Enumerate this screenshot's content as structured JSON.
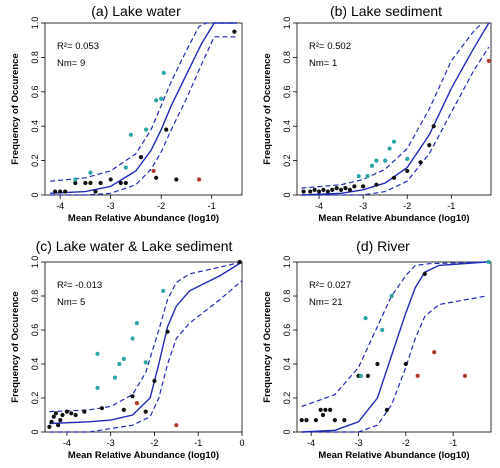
{
  "chart_data": [
    {
      "type": "scatter",
      "title": "(a) Lake water",
      "xlabel": "Mean Relative Abundance (log10)",
      "ylabel": "Frequency of Occurence",
      "r2_text": "R²= 0.053",
      "nm_text": "Nm= 9",
      "xlim": [
        -4.3,
        -0.4
      ],
      "ylim": [
        0,
        1.0
      ],
      "xticks": [
        -4,
        -3,
        -2,
        -1
      ],
      "yticks": [
        0,
        0.2,
        0.4,
        0.6,
        0.8,
        1.0
      ],
      "tick_labels_x": [
        "-4",
        "-3",
        "-2",
        "-1"
      ],
      "tick_labels_y": [
        "0",
        "0.2",
        "0.4",
        "0.6",
        "0.8",
        "1.0"
      ],
      "fit": [
        [
          -4.2,
          0.01
        ],
        [
          -3.5,
          0.02
        ],
        [
          -3.0,
          0.05
        ],
        [
          -2.5,
          0.14
        ],
        [
          -2.2,
          0.26
        ],
        [
          -2.0,
          0.38
        ],
        [
          -1.8,
          0.52
        ],
        [
          -1.5,
          0.7
        ],
        [
          -1.2,
          0.88
        ],
        [
          -0.95,
          1.0
        ],
        [
          -0.5,
          1.0
        ]
      ],
      "upper": [
        [
          -4.2,
          0.08
        ],
        [
          -3.5,
          0.1
        ],
        [
          -3.0,
          0.14
        ],
        [
          -2.5,
          0.24
        ],
        [
          -2.2,
          0.38
        ],
        [
          -2.0,
          0.52
        ],
        [
          -1.8,
          0.66
        ],
        [
          -1.5,
          0.84
        ],
        [
          -1.25,
          0.98
        ],
        [
          -1.1,
          1.0
        ],
        [
          -0.5,
          1.0
        ]
      ],
      "lower": [
        [
          -4.2,
          0.0
        ],
        [
          -3.5,
          0.0
        ],
        [
          -3.0,
          0.01
        ],
        [
          -2.5,
          0.06
        ],
        [
          -2.2,
          0.15
        ],
        [
          -2.0,
          0.25
        ],
        [
          -1.8,
          0.38
        ],
        [
          -1.5,
          0.56
        ],
        [
          -1.2,
          0.76
        ],
        [
          -0.95,
          0.92
        ],
        [
          -0.5,
          0.92
        ]
      ],
      "black": [
        [
          -4.1,
          0.02
        ],
        [
          -4.0,
          0.02
        ],
        [
          -3.9,
          0.02
        ],
        [
          -3.7,
          0.07
        ],
        [
          -3.5,
          0.07
        ],
        [
          -3.4,
          0.07
        ],
        [
          -3.3,
          0.02
        ],
        [
          -3.2,
          0.07
        ],
        [
          -3.0,
          0.09
        ],
        [
          -2.8,
          0.07
        ],
        [
          -2.7,
          0.07
        ],
        [
          -2.4,
          0.22
        ],
        [
          -2.1,
          0.1
        ],
        [
          -1.7,
          0.09
        ],
        [
          -1.9,
          0.38
        ],
        [
          -0.55,
          0.95
        ]
      ],
      "cyan": [
        [
          -3.7,
          0.09
        ],
        [
          -3.4,
          0.13
        ],
        [
          -2.7,
          0.16
        ],
        [
          -2.3,
          0.38
        ],
        [
          -2.1,
          0.55
        ],
        [
          -1.95,
          0.71
        ],
        [
          -2.0,
          0.56
        ],
        [
          -2.6,
          0.35
        ]
      ],
      "red": [
        [
          -2.15,
          0.14
        ],
        [
          -1.25,
          0.09
        ]
      ]
    },
    {
      "type": "scatter",
      "title": "(b) Lake sediment",
      "xlabel": "Mean Relative Abundance (log10)",
      "ylabel": "Frequency of Occurence",
      "r2_text": "R²= 0.502",
      "nm_text": "Nm= 1",
      "xlim": [
        -4.5,
        -0.1
      ],
      "ylim": [
        0,
        1.0
      ],
      "xticks": [
        -4,
        -3,
        -2,
        -1
      ],
      "yticks": [
        0,
        0.2,
        0.4,
        0.6,
        0.8,
        1.0
      ],
      "tick_labels_x": [
        "-4",
        "-3",
        "-2",
        "-1"
      ],
      "tick_labels_y": [
        "0",
        "0.2",
        "0.4",
        "0.6",
        "0.8",
        "1.0"
      ],
      "fit": [
        [
          -4.4,
          0.0
        ],
        [
          -3.5,
          0.01
        ],
        [
          -3.0,
          0.03
        ],
        [
          -2.5,
          0.07
        ],
        [
          -2.0,
          0.16
        ],
        [
          -1.5,
          0.35
        ],
        [
          -1.0,
          0.62
        ],
        [
          -0.5,
          0.85
        ],
        [
          -0.15,
          1.0
        ]
      ],
      "upper": [
        [
          -4.4,
          0.04
        ],
        [
          -3.5,
          0.06
        ],
        [
          -3.0,
          0.09
        ],
        [
          -2.5,
          0.15
        ],
        [
          -2.0,
          0.27
        ],
        [
          -1.5,
          0.5
        ],
        [
          -1.0,
          0.78
        ],
        [
          -0.5,
          0.95
        ],
        [
          -0.3,
          1.0
        ]
      ],
      "lower": [
        [
          -4.4,
          0.0
        ],
        [
          -3.5,
          0.0
        ],
        [
          -3.0,
          0.0
        ],
        [
          -2.5,
          0.02
        ],
        [
          -2.0,
          0.08
        ],
        [
          -1.5,
          0.24
        ],
        [
          -1.0,
          0.48
        ],
        [
          -0.5,
          0.72
        ],
        [
          -0.15,
          0.86
        ]
      ],
      "black": [
        [
          -4.35,
          0.02
        ],
        [
          -4.2,
          0.02
        ],
        [
          -4.1,
          0.03
        ],
        [
          -4.0,
          0.02
        ],
        [
          -3.9,
          0.03
        ],
        [
          -3.8,
          0.02
        ],
        [
          -3.7,
          0.03
        ],
        [
          -3.6,
          0.04
        ],
        [
          -3.5,
          0.03
        ],
        [
          -3.4,
          0.04
        ],
        [
          -3.3,
          0.03
        ],
        [
          -3.2,
          0.05
        ],
        [
          -3.0,
          0.05
        ],
        [
          -2.7,
          0.06
        ],
        [
          -2.3,
          0.1
        ],
        [
          -2.0,
          0.14
        ],
        [
          -1.7,
          0.19
        ],
        [
          -1.5,
          0.29
        ],
        [
          -1.4,
          0.4
        ]
      ],
      "cyan": [
        [
          -3.1,
          0.11
        ],
        [
          -2.9,
          0.11
        ],
        [
          -2.8,
          0.17
        ],
        [
          -2.5,
          0.2
        ],
        [
          -2.4,
          0.27
        ],
        [
          -2.3,
          0.31
        ],
        [
          -2.7,
          0.2
        ],
        [
          -2.0,
          0.21
        ]
      ],
      "red": [
        [
          -0.15,
          0.78
        ]
      ]
    },
    {
      "type": "scatter",
      "title": "(c) Lake water & Lake sediment",
      "xlabel": "Mean Relative Abundance (log10)",
      "ylabel": "Frequency of Occurence",
      "r2_text": "R²= -0.013",
      "nm_text": "Nm= 5",
      "xlim": [
        -4.5,
        0.0
      ],
      "ylim": [
        0,
        1.0
      ],
      "xticks": [
        -4,
        -3,
        -2,
        -1,
        0
      ],
      "yticks": [
        0,
        0.2,
        0.4,
        0.6,
        0.8,
        1.0
      ],
      "tick_labels_x": [
        "-4",
        "-3",
        "-2",
        "-1",
        "0"
      ],
      "tick_labels_y": [
        "0",
        "0.2",
        "0.4",
        "0.6",
        "0.8",
        "1.0"
      ],
      "fit": [
        [
          -4.4,
          0.05
        ],
        [
          -3.5,
          0.06
        ],
        [
          -3.0,
          0.07
        ],
        [
          -2.5,
          0.1
        ],
        [
          -2.1,
          0.2
        ],
        [
          -1.9,
          0.4
        ],
        [
          -1.7,
          0.62
        ],
        [
          -1.5,
          0.74
        ],
        [
          -1.2,
          0.83
        ],
        [
          -0.5,
          0.92
        ],
        [
          0.0,
          1.0
        ]
      ],
      "upper": [
        [
          -4.4,
          0.12
        ],
        [
          -3.5,
          0.13
        ],
        [
          -3.0,
          0.15
        ],
        [
          -2.5,
          0.22
        ],
        [
          -2.2,
          0.35
        ],
        [
          -1.9,
          0.6
        ],
        [
          -1.7,
          0.78
        ],
        [
          -1.5,
          0.88
        ],
        [
          -1.2,
          0.93
        ],
        [
          -0.5,
          0.97
        ],
        [
          0.0,
          1.0
        ]
      ],
      "lower": [
        [
          -4.4,
          0.0
        ],
        [
          -3.5,
          0.0
        ],
        [
          -3.0,
          0.02
        ],
        [
          -2.5,
          0.04
        ],
        [
          -2.1,
          0.09
        ],
        [
          -1.9,
          0.2
        ],
        [
          -1.7,
          0.4
        ],
        [
          -1.5,
          0.55
        ],
        [
          -1.2,
          0.64
        ],
        [
          -0.5,
          0.78
        ],
        [
          0.0,
          0.89
        ]
      ],
      "black": [
        [
          -4.4,
          0.03
        ],
        [
          -4.35,
          0.06
        ],
        [
          -4.3,
          0.09
        ],
        [
          -4.25,
          0.11
        ],
        [
          -4.2,
          0.04
        ],
        [
          -4.15,
          0.07
        ],
        [
          -4.1,
          0.1
        ],
        [
          -4.0,
          0.12
        ],
        [
          -3.9,
          0.11
        ],
        [
          -3.8,
          0.1
        ],
        [
          -3.6,
          0.12
        ],
        [
          -3.2,
          0.14
        ],
        [
          -2.7,
          0.13
        ],
        [
          -2.5,
          0.21
        ],
        [
          -2.2,
          0.12
        ],
        [
          -2.0,
          0.3
        ],
        [
          -1.7,
          0.59
        ],
        [
          -0.05,
          1.0
        ]
      ],
      "cyan": [
        [
          -3.3,
          0.46
        ],
        [
          -3.3,
          0.26
        ],
        [
          -2.9,
          0.32
        ],
        [
          -2.7,
          0.43
        ],
        [
          -2.5,
          0.55
        ],
        [
          -2.4,
          0.64
        ],
        [
          -2.2,
          0.41
        ],
        [
          -1.8,
          0.83
        ],
        [
          -2.8,
          0.4
        ]
      ],
      "red": [
        [
          -2.4,
          0.17
        ],
        [
          -1.5,
          0.04
        ]
      ]
    },
    {
      "type": "scatter",
      "title": "(d) River",
      "xlabel": "Mean Relative Abundance (log10)",
      "ylabel": "Frequency of Occurence",
      "r2_text": "R²= 0.027",
      "nm_text": "Nm= 21",
      "xlim": [
        -4.3,
        -0.2
      ],
      "ylim": [
        0,
        1.0
      ],
      "xticks": [
        -4,
        -3,
        -2,
        -1
      ],
      "yticks": [
        0,
        0.2,
        0.4,
        0.6,
        0.8,
        1.0
      ],
      "tick_labels_x": [
        "-4",
        "-3",
        "-2",
        "-1"
      ],
      "tick_labels_y": [
        "0",
        "0.2",
        "0.4",
        "0.6",
        "0.8",
        "1.0"
      ],
      "fit": [
        [
          -4.2,
          0.0
        ],
        [
          -3.5,
          0.01
        ],
        [
          -3.0,
          0.06
        ],
        [
          -2.6,
          0.2
        ],
        [
          -2.3,
          0.45
        ],
        [
          -2.0,
          0.7
        ],
        [
          -1.8,
          0.85
        ],
        [
          -1.6,
          0.94
        ],
        [
          -1.3,
          0.98
        ],
        [
          -0.3,
          1.0
        ]
      ],
      "upper": [
        [
          -4.2,
          0.15
        ],
        [
          -3.5,
          0.22
        ],
        [
          -3.0,
          0.38
        ],
        [
          -2.6,
          0.62
        ],
        [
          -2.3,
          0.8
        ],
        [
          -2.0,
          0.92
        ],
        [
          -1.8,
          0.98
        ],
        [
          -1.5,
          0.99
        ],
        [
          -0.3,
          1.0
        ]
      ],
      "lower": [
        [
          -4.2,
          0.0
        ],
        [
          -3.5,
          0.0
        ],
        [
          -3.0,
          0.0
        ],
        [
          -2.6,
          0.04
        ],
        [
          -2.3,
          0.16
        ],
        [
          -2.0,
          0.38
        ],
        [
          -1.8,
          0.55
        ],
        [
          -1.6,
          0.68
        ],
        [
          -1.3,
          0.75
        ],
        [
          -0.3,
          0.8
        ]
      ],
      "black": [
        [
          -4.2,
          0.07
        ],
        [
          -4.1,
          0.07
        ],
        [
          -3.9,
          0.07
        ],
        [
          -3.8,
          0.13
        ],
        [
          -3.75,
          0.1
        ],
        [
          -3.7,
          0.13
        ],
        [
          -3.6,
          0.13
        ],
        [
          -3.5,
          0.07
        ],
        [
          -3.3,
          0.07
        ],
        [
          -3.0,
          0.33
        ],
        [
          -2.8,
          0.33
        ],
        [
          -2.6,
          0.4
        ],
        [
          -2.4,
          0.13
        ],
        [
          -2.0,
          0.4
        ],
        [
          -1.6,
          0.93
        ]
      ],
      "cyan": [
        [
          -2.85,
          0.67
        ],
        [
          -2.95,
          0.33
        ],
        [
          -2.5,
          0.6
        ],
        [
          -2.3,
          0.8
        ],
        [
          -0.25,
          1.0
        ]
      ],
      "red": [
        [
          -1.75,
          0.33
        ],
        [
          -1.4,
          0.47
        ],
        [
          -0.75,
          0.33
        ]
      ]
    }
  ],
  "colors": {
    "fit": "#1f2bb8",
    "black": "#111111",
    "cyan": "#2aa6a6",
    "red": "#b23a2a"
  }
}
